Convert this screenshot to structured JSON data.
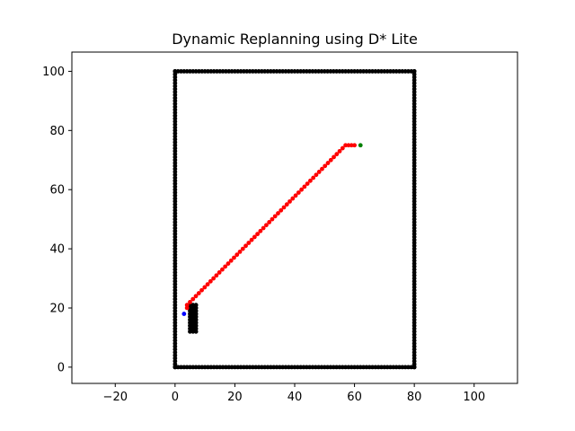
{
  "chart_data": {
    "type": "scatter",
    "title": "Dynamic Replanning using D* Lite",
    "xlabel": "",
    "ylabel": "",
    "xlim": [
      -34.5,
      114.5
    ],
    "ylim": [
      -5.5,
      106.5
    ],
    "xticks": [
      -20,
      0,
      20,
      40,
      60,
      80,
      100
    ],
    "yticks": [
      0,
      20,
      40,
      60,
      80,
      100
    ],
    "grid": false,
    "series": [
      {
        "color": "#000000",
        "marker": "dot",
        "description": "obstacles",
        "segments": [
          {
            "from": [
              0,
              0
            ],
            "to": [
              80,
              0
            ],
            "step": 1
          },
          {
            "from": [
              0,
              100
            ],
            "to": [
              80,
              100
            ],
            "step": 1
          },
          {
            "from": [
              0,
              0
            ],
            "to": [
              0,
              100
            ],
            "step": 1
          },
          {
            "from": [
              80,
              0
            ],
            "to": [
              80,
              100
            ],
            "step": 1
          }
        ],
        "blocks": [
          {
            "x": [
              5,
              7
            ],
            "y": [
              12,
              21
            ]
          }
        ]
      },
      {
        "color": "#ff0000",
        "marker": "dot",
        "description": "path",
        "polyline": [
          [
            4,
            20
          ],
          [
            4,
            21
          ],
          [
            5,
            22
          ],
          [
            57,
            75
          ],
          [
            60,
            75
          ]
        ],
        "step": 1
      },
      {
        "color": "#0000ff",
        "marker": "dot",
        "description": "start",
        "points": [
          [
            3,
            18
          ]
        ]
      },
      {
        "color": "#008000",
        "marker": "dot",
        "description": "goal",
        "points": [
          [
            62,
            75
          ]
        ]
      }
    ]
  }
}
